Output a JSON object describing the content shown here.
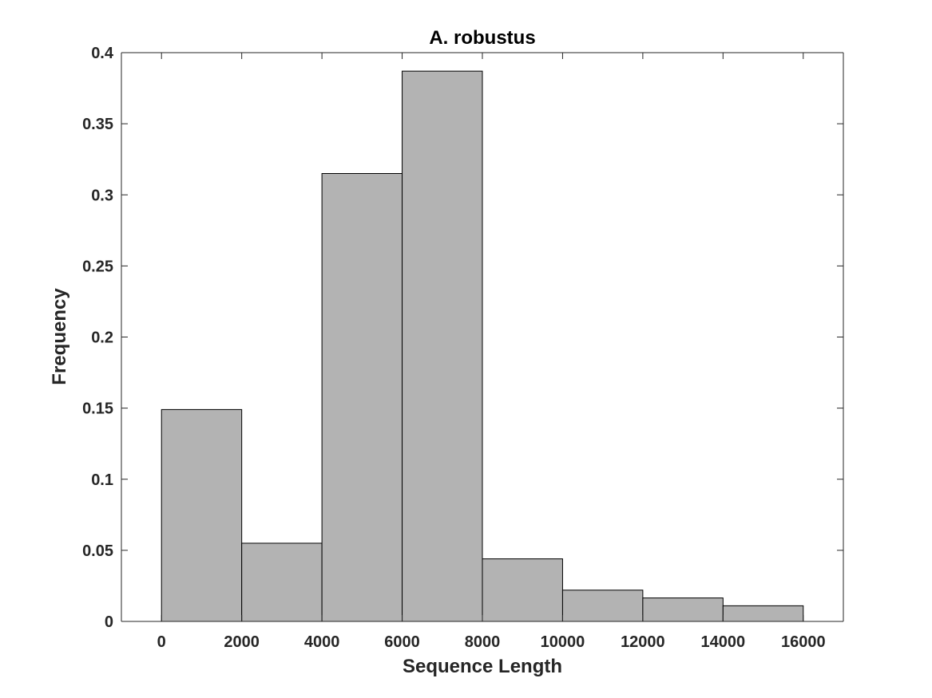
{
  "chart_data": {
    "type": "bar",
    "histogram": true,
    "title": "A. robustus",
    "xlabel": "Sequence Length",
    "ylabel": "Frequency",
    "xlim": [
      -1000,
      17000
    ],
    "ylim": [
      0,
      0.4
    ],
    "grid": false,
    "bins": [
      {
        "start": 0,
        "end": 2000,
        "value": 0.149
      },
      {
        "start": 2000,
        "end": 4000,
        "value": 0.055
      },
      {
        "start": 4000,
        "end": 6000,
        "value": 0.315
      },
      {
        "start": 6000,
        "end": 8000,
        "value": 0.387
      },
      {
        "start": 8000,
        "end": 10000,
        "value": 0.044
      },
      {
        "start": 10000,
        "end": 12000,
        "value": 0.022
      },
      {
        "start": 12000,
        "end": 14000,
        "value": 0.0165
      },
      {
        "start": 14000,
        "end": 16000,
        "value": 0.011
      }
    ],
    "xticks": [
      0,
      2000,
      4000,
      6000,
      8000,
      10000,
      12000,
      14000,
      16000
    ],
    "xtick_labels": [
      "0",
      "2000",
      "4000",
      "6000",
      "8000",
      "10000",
      "12000",
      "14000",
      "16000"
    ],
    "yticks": [
      0,
      0.05,
      0.1,
      0.15,
      0.2,
      0.25,
      0.3,
      0.35,
      0.4
    ],
    "ytick_labels": [
      "0",
      "0.05",
      "0.1",
      "0.15",
      "0.2",
      "0.25",
      "0.3",
      "0.35",
      "0.4"
    ],
    "bar_color": "#b3b3b3",
    "edge_color": "#000000"
  }
}
